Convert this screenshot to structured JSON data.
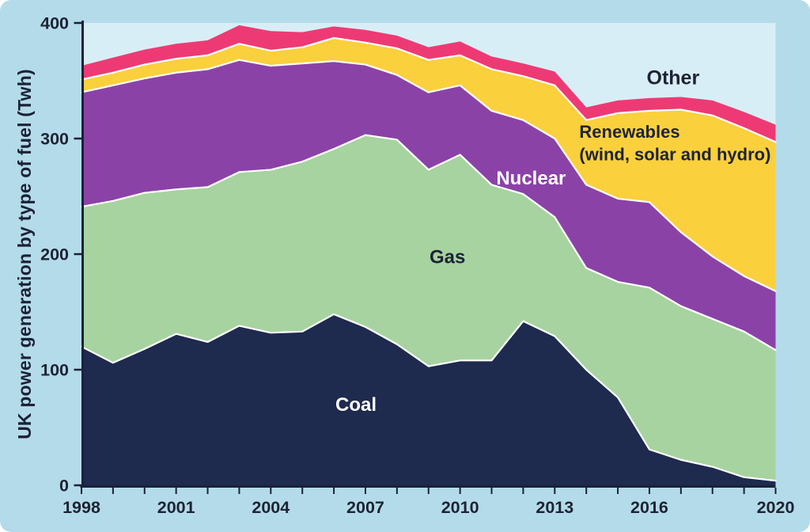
{
  "chart_data": {
    "type": "area",
    "stacked": true,
    "title": "",
    "ylabel": "UK power generation by type of fuel (Twh)",
    "xlabel": "",
    "xlim": [
      1998,
      2020
    ],
    "ylim": [
      0,
      400
    ],
    "grid": false,
    "legend_position": "inline-annotations",
    "x": [
      1998,
      1999,
      2000,
      2001,
      2002,
      2003,
      2004,
      2005,
      2006,
      2007,
      2008,
      2009,
      2010,
      2011,
      2012,
      2013,
      2014,
      2015,
      2016,
      2017,
      2018,
      2019,
      2020
    ],
    "x_tick_label_years": [
      1998,
      2001,
      2004,
      2007,
      2010,
      2013,
      2016,
      2020
    ],
    "y_ticks": [
      0,
      100,
      200,
      300,
      400
    ],
    "series": [
      {
        "id": "coal",
        "name": "Coal",
        "color": "#1e2a4e",
        "values": [
          120,
          106,
          118,
          131,
          124,
          138,
          132,
          133,
          148,
          137,
          122,
          103,
          108,
          108,
          142,
          129,
          100,
          76,
          31,
          22,
          16,
          7,
          4
        ]
      },
      {
        "id": "gas",
        "name": "Gas",
        "color": "#a7d3a0",
        "values": [
          121,
          140,
          135,
          125,
          134,
          133,
          141,
          147,
          143,
          166,
          177,
          170,
          178,
          152,
          110,
          103,
          88,
          100,
          140,
          133,
          128,
          126,
          113
        ]
      },
      {
        "id": "nuclear",
        "name": "Nuclear",
        "color": "#8b42a7",
        "values": [
          99,
          100,
          99,
          101,
          102,
          97,
          90,
          85,
          76,
          61,
          56,
          67,
          60,
          64,
          64,
          68,
          72,
          72,
          74,
          64,
          54,
          48,
          51
        ]
      },
      {
        "id": "renewables",
        "name": "Renewables (wind, solar and hydro)",
        "color": "#fbd03d",
        "values": [
          11,
          11,
          12,
          12,
          12,
          14,
          13,
          14,
          20,
          19,
          23,
          28,
          26,
          36,
          38,
          46,
          56,
          74,
          79,
          106,
          122,
          128,
          129
        ]
      },
      {
        "id": "other",
        "name": "Other",
        "color": "#ee3a74",
        "values": [
          12,
          13,
          13,
          13,
          13,
          16,
          17,
          13,
          10,
          11,
          11,
          11,
          12,
          11,
          11,
          12,
          11,
          11,
          11,
          11,
          13,
          14,
          15
        ]
      }
    ],
    "annotations": [
      {
        "id": "other",
        "lines": [
          "Other"
        ],
        "year": 2016.75,
        "value": 353,
        "color": "#1d2335",
        "anchor": "middle",
        "size": 25
      },
      {
        "id": "renewables",
        "lines": [
          "Renewables",
          "(wind, solar and hydro)"
        ],
        "year": 2013.78,
        "value": 306,
        "color": "#1d2335",
        "anchor": "start",
        "size": 22
      },
      {
        "id": "nuclear",
        "lines": [
          "Nuclear"
        ],
        "year": 2012.25,
        "value": 266,
        "color": "#ffffff",
        "anchor": "middle",
        "size": 24
      },
      {
        "id": "gas",
        "lines": [
          "Gas"
        ],
        "year": 2009.6,
        "value": 198,
        "color": "#1d2335",
        "anchor": "middle",
        "size": 24
      },
      {
        "id": "coal",
        "lines": [
          "Coal"
        ],
        "year": 2006.7,
        "value": 70,
        "color": "#ffffff",
        "anchor": "middle",
        "size": 24
      }
    ],
    "palette": {
      "page_bg": "#b4dbe9",
      "plot_bg": "#d8eef6",
      "axis": "#1b2137",
      "tick_label": "#1d2335",
      "boundary_stroke": "#ffffff"
    }
  }
}
